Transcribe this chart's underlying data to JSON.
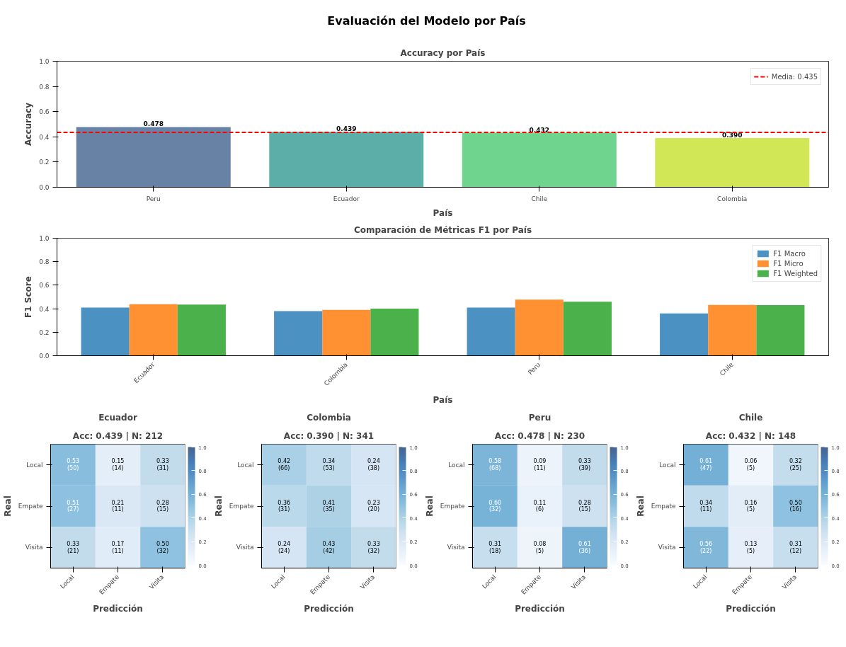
{
  "chart_data": [
    {
      "type": "other",
      "title": "Evaluación del Modelo por País"
    },
    {
      "type": "bar",
      "title": "Accuracy por País",
      "xlabel": "País",
      "ylabel": "Accuracy",
      "categories": [
        "Peru",
        "Ecuador",
        "Chile",
        "Colombia"
      ],
      "values": [
        0.478,
        0.439,
        0.432,
        0.39
      ],
      "colors": [
        "#56749b",
        "#4aa6a0",
        "#5ecf82",
        "#cde444"
      ],
      "value_labels": [
        "0.478",
        "0.439",
        "0.432",
        "0.390"
      ],
      "ylim": [
        0,
        1
      ],
      "yticks": [
        {
          "value": 0,
          "label": "0.0"
        },
        {
          "value": 0.2,
          "label": "0.2"
        },
        {
          "value": 0.4,
          "label": "0.4"
        },
        {
          "value": 0.6,
          "label": "0.6"
        },
        {
          "value": 0.8,
          "label": "0.8"
        },
        {
          "value": 1,
          "label": "1.0"
        }
      ],
      "ref_lines": [
        {
          "axis": "y",
          "value": 0.435,
          "label": "Media: 0.435",
          "color": "#ff0000",
          "line_style": "dashed"
        }
      ],
      "legend": "top right",
      "grid": false
    },
    {
      "type": "bar",
      "title": "Comparación de Métricas F1 por País",
      "xlabel": "País",
      "ylabel": "F1 Score",
      "categories": [
        "Ecuador",
        "Colombia",
        "Peru",
        "Chile"
      ],
      "series": [
        {
          "name": "F1 Macro",
          "color": "#4b92c3",
          "values": [
            0.41,
            0.38,
            0.41,
            0.36
          ]
        },
        {
          "name": "F1 Micro",
          "color": "#ff9132",
          "values": [
            0.439,
            0.39,
            0.478,
            0.432
          ]
        },
        {
          "name": "F1 Weighted",
          "color": "#4bb24b",
          "values": [
            0.435,
            0.4,
            0.46,
            0.43
          ]
        }
      ],
      "ylim": [
        0,
        1
      ],
      "yticks": [
        {
          "value": 0,
          "label": "0.0"
        },
        {
          "value": 0.2,
          "label": "0.2"
        },
        {
          "value": 0.4,
          "label": "0.4"
        },
        {
          "value": 0.6,
          "label": "0.6"
        },
        {
          "value": 0.8,
          "label": "0.8"
        },
        {
          "value": 1,
          "label": "1.0"
        }
      ],
      "legend": "top right",
      "grid": false
    },
    {
      "type": "heatmap",
      "title": "Ecuador",
      "subtitle": "Acc: 0.439 | N: 212",
      "xlabel": "Predicción",
      "ylabel": "Real",
      "categories": [
        "Local",
        "Empate",
        "Visita"
      ],
      "y_categories": [
        "Local",
        "Empate",
        "Visita"
      ],
      "cells": [
        [
          0.53,
          0.15,
          0.33
        ],
        [
          0.51,
          0.21,
          0.28
        ],
        [
          0.33,
          0.17,
          0.5
        ]
      ],
      "cell_labels": [
        [
          "0.53\n(50)",
          "0.15\n(14)",
          "0.33\n(31)"
        ],
        [
          "0.51\n(27)",
          "0.21\n(11)",
          "0.28\n(15)"
        ],
        [
          "0.33\n(21)",
          "0.17\n(11)",
          "0.50\n(32)"
        ]
      ],
      "clim": [
        0,
        1
      ],
      "cticks": [
        {
          "value": 0,
          "label": "0.0"
        },
        {
          "value": 0.2,
          "label": "0.2"
        },
        {
          "value": 0.4,
          "label": "0.4"
        },
        {
          "value": 0.6,
          "label": "0.6"
        },
        {
          "value": 0.8,
          "label": "0.8"
        },
        {
          "value": 1,
          "label": "1.0"
        }
      ]
    },
    {
      "type": "heatmap",
      "title": "Colombia",
      "subtitle": "Acc: 0.390 | N: 341",
      "xlabel": "Predicción",
      "ylabel": "Real",
      "categories": [
        "Local",
        "Empate",
        "Visita"
      ],
      "y_categories": [
        "Local",
        "Empate",
        "Visita"
      ],
      "cells": [
        [
          0.42,
          0.34,
          0.24
        ],
        [
          0.36,
          0.41,
          0.23
        ],
        [
          0.24,
          0.43,
          0.33
        ]
      ],
      "cell_labels": [
        [
          "0.42\n(66)",
          "0.34\n(53)",
          "0.24\n(38)"
        ],
        [
          "0.36\n(31)",
          "0.41\n(35)",
          "0.23\n(20)"
        ],
        [
          "0.24\n(24)",
          "0.43\n(42)",
          "0.33\n(32)"
        ]
      ],
      "clim": [
        0,
        1
      ],
      "cticks": [
        {
          "value": 0,
          "label": "0.0"
        },
        {
          "value": 0.2,
          "label": "0.2"
        },
        {
          "value": 0.4,
          "label": "0.4"
        },
        {
          "value": 0.6,
          "label": "0.6"
        },
        {
          "value": 0.8,
          "label": "0.8"
        },
        {
          "value": 1,
          "label": "1.0"
        }
      ]
    },
    {
      "type": "heatmap",
      "title": "Peru",
      "subtitle": "Acc: 0.478 | N: 230",
      "xlabel": "Predicción",
      "ylabel": "Real",
      "categories": [
        "Local",
        "Empate",
        "Visita"
      ],
      "y_categories": [
        "Local",
        "Empate",
        "Visita"
      ],
      "cells": [
        [
          0.58,
          0.09,
          0.33
        ],
        [
          0.6,
          0.11,
          0.28
        ],
        [
          0.31,
          0.08,
          0.61
        ]
      ],
      "cell_labels": [
        [
          "0.58\n(68)",
          "0.09\n(11)",
          "0.33\n(39)"
        ],
        [
          "0.60\n(32)",
          "0.11\n(6)",
          "0.28\n(15)"
        ],
        [
          "0.31\n(18)",
          "0.08\n(5)",
          "0.61\n(36)"
        ]
      ],
      "clim": [
        0,
        1
      ],
      "cticks": [
        {
          "value": 0,
          "label": "0.0"
        },
        {
          "value": 0.2,
          "label": "0.2"
        },
        {
          "value": 0.4,
          "label": "0.4"
        },
        {
          "value": 0.6,
          "label": "0.6"
        },
        {
          "value": 0.8,
          "label": "0.8"
        },
        {
          "value": 1,
          "label": "1.0"
        }
      ]
    },
    {
      "type": "heatmap",
      "title": "Chile",
      "subtitle": "Acc: 0.432 | N: 148",
      "xlabel": "Predicción",
      "ylabel": "Real",
      "categories": [
        "Local",
        "Empate",
        "Visita"
      ],
      "y_categories": [
        "Local",
        "Empate",
        "Visita"
      ],
      "cells": [
        [
          0.61,
          0.06,
          0.32
        ],
        [
          0.34,
          0.16,
          0.5
        ],
        [
          0.56,
          0.13,
          0.31
        ]
      ],
      "cell_labels": [
        [
          "0.61\n(47)",
          "0.06\n(5)",
          "0.32\n(25)"
        ],
        [
          "0.34\n(11)",
          "0.16\n(5)",
          "0.50\n(16)"
        ],
        [
          "0.56\n(22)",
          "0.13\n(5)",
          "0.31\n(12)"
        ]
      ],
      "clim": [
        0,
        1
      ],
      "cticks": [
        {
          "value": 0,
          "label": "0.0"
        },
        {
          "value": 0.2,
          "label": "0.2"
        },
        {
          "value": 0.4,
          "label": "0.4"
        },
        {
          "value": 0.6,
          "label": "0.6"
        },
        {
          "value": 0.8,
          "label": "0.8"
        },
        {
          "value": 1,
          "label": "1.0"
        }
      ]
    }
  ]
}
